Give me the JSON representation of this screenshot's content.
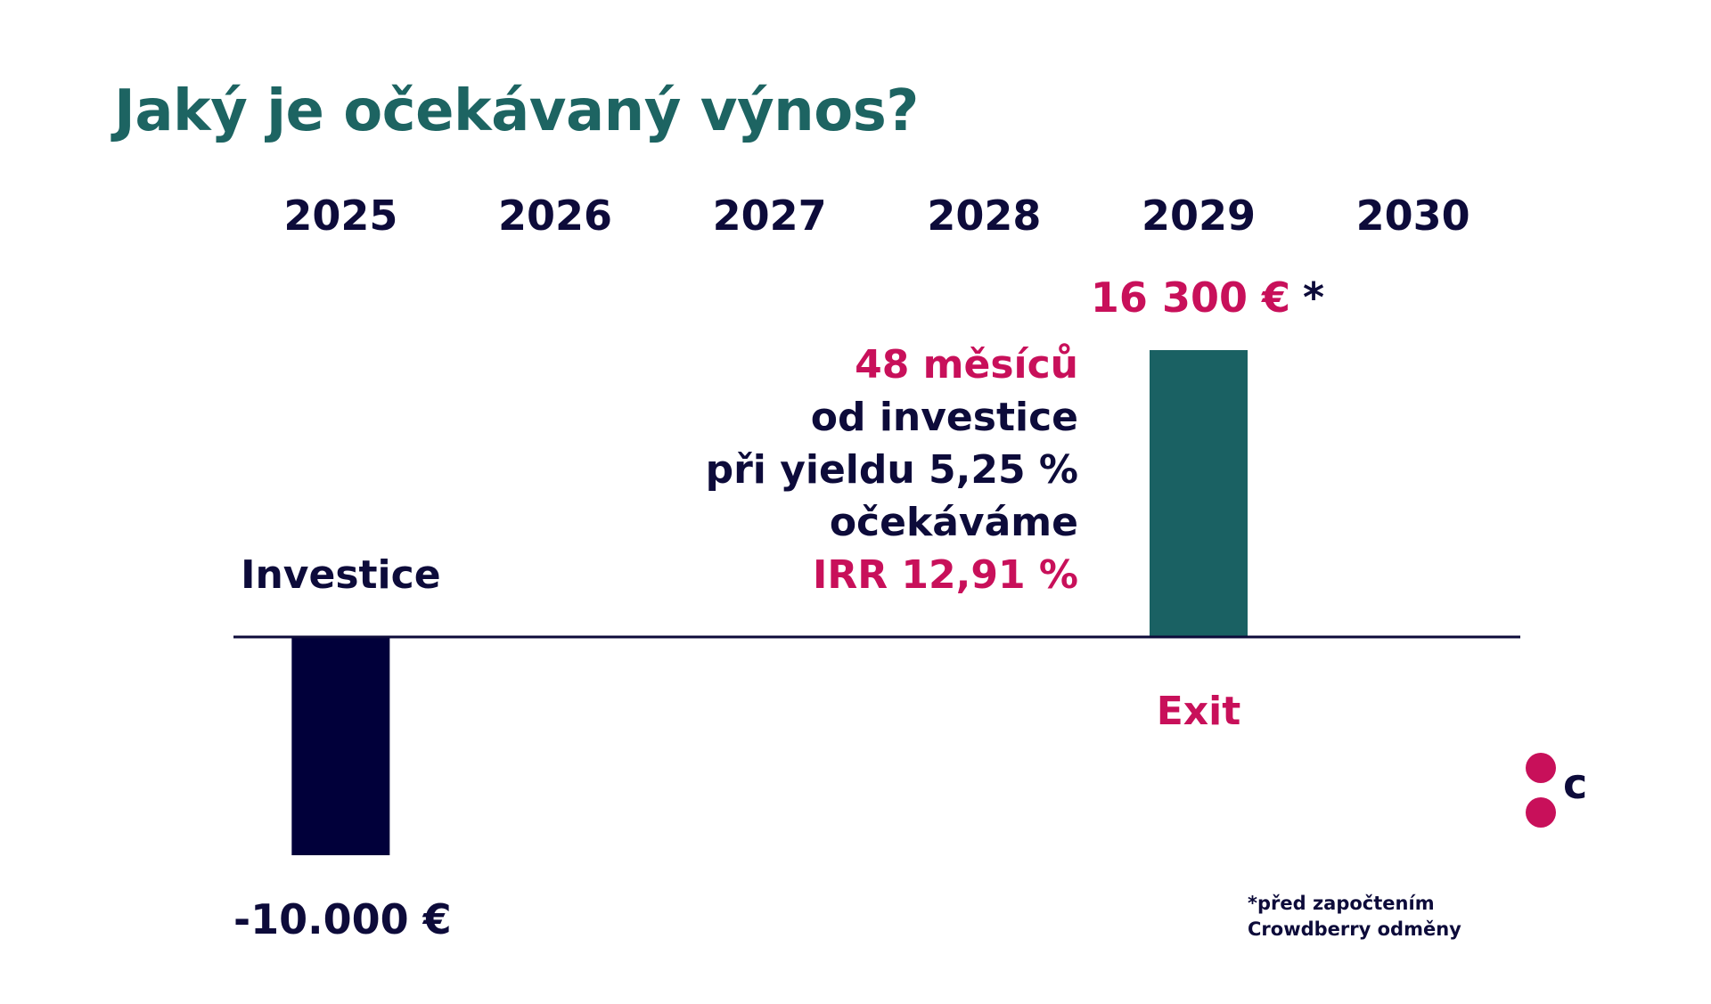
{
  "title": "Jaký je očekávaný výnos?",
  "colors": {
    "title": "#1d6462",
    "navy": "#0d0b3a",
    "bar_investment": "#01003a",
    "bar_exit": "#1a6163",
    "accent_pink": "#c8105a",
    "axis": "#0d0b3a"
  },
  "chart_data": {
    "type": "bar",
    "categories": [
      "2025",
      "2026",
      "2027",
      "2028",
      "2029",
      "2030"
    ],
    "values": [
      -10000,
      0,
      0,
      0,
      16300,
      0
    ],
    "ylim": [
      -10000,
      16300
    ],
    "grid": false,
    "bar_labels": {
      "2025": {
        "above": "Investice",
        "below": "-10.000 €"
      },
      "2029": {
        "above": "16 300 €",
        "above_suffix": "*",
        "below": "Exit"
      }
    }
  },
  "annotation": {
    "line1": "48 měsíců",
    "line2": "od investice",
    "line3": "při yieldu 5,25 %",
    "line4": "očekáváme",
    "line5": "IRR 12,91 %"
  },
  "footnote": {
    "line1": "*před započtením",
    "line2": "Crowdberry odměny"
  },
  "logo": {
    "letter": "c",
    "icon": "crowdberry-logo-icon"
  }
}
